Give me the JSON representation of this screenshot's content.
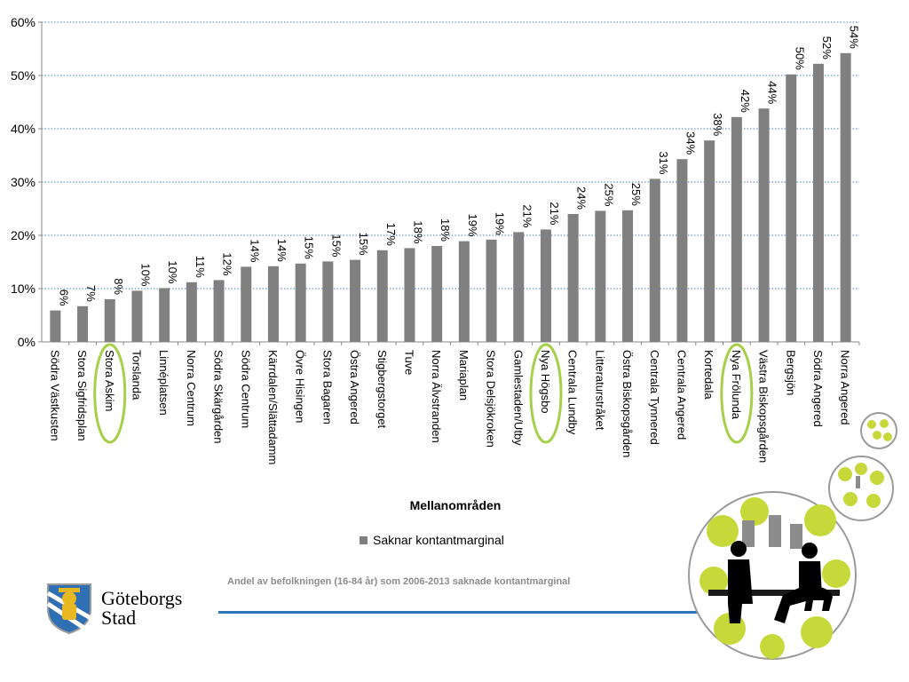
{
  "chart_data": {
    "type": "bar",
    "title": "",
    "xlabel": "Mellanområden",
    "ylabel": "",
    "ylim": [
      0,
      60
    ],
    "yticks": [
      "0%",
      "10%",
      "20%",
      "30%",
      "40%",
      "50%",
      "60%"
    ],
    "grid": true,
    "legend_position": "bottom",
    "bar_color": "#808080",
    "highlight_color": "#a6cf4a",
    "categories": [
      "Södra Västkusten",
      "Stora Sigfridsplan",
      "Stora Askim",
      "Torslanda",
      "Linnéplatsen",
      "Norra Centrum",
      "Södra Skärgården",
      "Södra Centrum",
      "Kärrdalen/Slättadamm",
      "Övre Hisingen",
      "Stora Bagaren",
      "Östra Angered",
      "Stigbergstorget",
      "Tuve",
      "Norra Älvstranden",
      "Mariaplan",
      "Stora Delsjökroken",
      "Gamlestaden/Utby",
      "Nya Högsbo",
      "Centrala Lundby",
      "Litteraturstråket",
      "Östra Biskopsgården",
      "Centrala Tynnered",
      "Centrala Angered",
      "Kortedala",
      "Nya Frölunda",
      "Västra Biskopsgården",
      "Bergsjön",
      "Södra Angered",
      "Norra Angered"
    ],
    "values": [
      5.9,
      6.7,
      8.0,
      9.6,
      10.1,
      11.2,
      11.6,
      14.1,
      14.2,
      14.7,
      15.1,
      15.4,
      17.2,
      17.6,
      18.0,
      18.9,
      19.2,
      20.6,
      21.1,
      24.0,
      24.6,
      24.7,
      30.6,
      34.3,
      37.8,
      42.2,
      43.8,
      50.2,
      52.2,
      54.2
    ],
    "data_labels": [
      "6%",
      "7%",
      "8%",
      "10%",
      "10%",
      "11%",
      "12%",
      "14%",
      "14%",
      "15%",
      "15%",
      "15%",
      "17%",
      "18%",
      "18%",
      "19%",
      "19%",
      "21%",
      "21%",
      "24%",
      "25%",
      "25%",
      "31%",
      "34%",
      "38%",
      "42%",
      "44%",
      "50%",
      "52%",
      "54%"
    ],
    "highlighted": [
      "Stora Askim",
      "Nya Högsbo",
      "Nya Frölunda"
    ],
    "series": [
      {
        "name": "Saknar kontantmarginal"
      }
    ]
  },
  "legend": {
    "label": "Saknar kontantmarginal"
  },
  "caption": "Andel av befolkningen (16-84 år) som 2006-2013 saknade kontantmarginal",
  "logo": {
    "line1": "Göteborgs",
    "line2": "Stad",
    "icon": "city-coat-of-arms-icon"
  },
  "illustration": {
    "icon": "park-people-illustration-icon"
  },
  "colors": {
    "rule": "#2a77b7",
    "caption": "#8c8c8c"
  }
}
